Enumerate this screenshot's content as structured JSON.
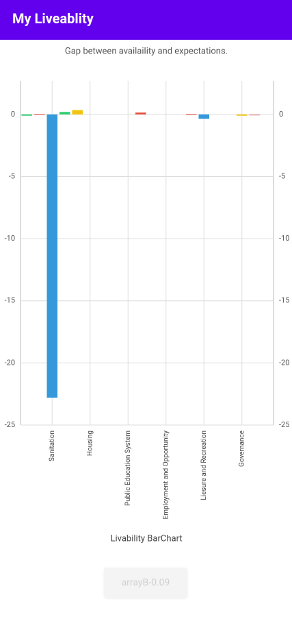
{
  "app_bar": {
    "title": "My Liveablity"
  },
  "chart_data": {
    "type": "bar",
    "title": "Gap between availaility and expectations.",
    "x_label": "Livability BarChart",
    "categories": [
      null,
      null,
      "Sanitation",
      null,
      null,
      "Housing",
      null,
      null,
      "Public Education System",
      null,
      null,
      "Employment and Opportunity",
      null,
      null,
      "Liesure and Recreation",
      null,
      null,
      "Governance",
      null,
      null
    ],
    "values": [
      -0.1,
      -0.03,
      -22.8,
      0.2,
      0.35,
      0,
      0,
      0,
      0,
      0.15,
      0,
      0,
      0,
      -0.03,
      -0.35,
      0,
      0,
      -0.1,
      -0.08,
      0
    ],
    "colors": [
      "#2ecc71",
      "#e74c3c",
      "#3498db",
      "#2ecc71",
      "#f1c40f",
      "#e74c3c",
      "#3498db",
      "#f1c40f",
      "#e8a0a0",
      "#e74c3c",
      "#3498db",
      "#f1c40f",
      "#e8a0a0",
      "#e74c3c",
      "#3498db",
      "#f1c40f",
      "#e8a0a0",
      "#f1c40f",
      "#e8a0a0",
      "#2ecc71"
    ],
    "ylim": [
      -25,
      2.7
    ],
    "yticks": [
      0,
      -5,
      -10,
      -15,
      -20,
      -25
    ],
    "y2lim": [
      -25,
      2.7
    ],
    "y2ticks": [
      0,
      -5,
      -10,
      -15,
      -20,
      -25
    ],
    "grid": true
  },
  "button": {
    "label": "arrayB-0.09"
  }
}
